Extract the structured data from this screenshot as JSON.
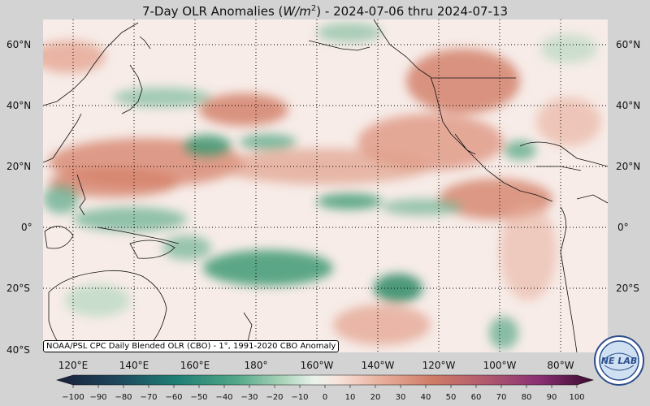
{
  "title_prefix": "7-Day OLR Anomalies (",
  "title_unit_w": "W/m",
  "title_unit_exp": "2",
  "title_suffix": ") - 2024-07-06 thru 2024-07-13",
  "caption": "NOAA/PSL CPC Daily Blended OLR (CBO) - 1°, 1991-2020 CBO Anomaly",
  "logo_text": "NE LAB",
  "lat_labels_left": [
    "60°N",
    "40°N",
    "20°N",
    "0°",
    "20°S",
    "40°S"
  ],
  "lat_labels_right": [
    "60°N",
    "40°N",
    "20°N",
    "0°",
    "20°S"
  ],
  "lon_labels": [
    "120°E",
    "140°E",
    "160°E",
    "180°",
    "160°W",
    "140°W",
    "120°W",
    "100°W",
    "80°W"
  ],
  "colorbar_ticks": [
    "−100",
    "−90",
    "−80",
    "−70",
    "−60",
    "−50",
    "−40",
    "−30",
    "−20",
    "−10",
    "0",
    "10",
    "20",
    "30",
    "40",
    "50",
    "60",
    "70",
    "80",
    "90",
    "100"
  ],
  "colors": {
    "background": "#d3d3d3",
    "neutral": "#f7ece8",
    "positive": "#d4826c",
    "negative": "#3f9a74"
  }
}
